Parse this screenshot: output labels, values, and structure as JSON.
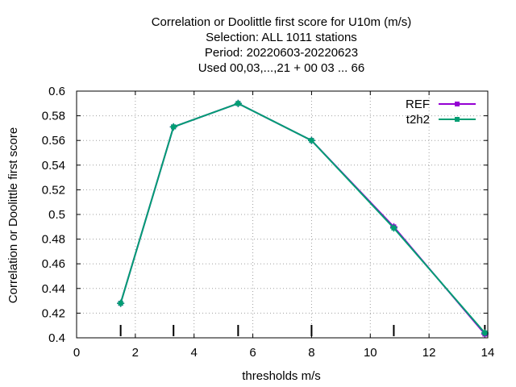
{
  "chart_data": {
    "type": "line",
    "title_lines": [
      "Correlation or Doolittle first score  for U10m (m/s)",
      "Selection: ALL   1011 stations",
      "Period: 20220603-20220623",
      "Used  00,03,...,21  + 00 03 ... 66"
    ],
    "xlabel": "thresholds m/s",
    "ylabel": "Correlation or Doolittle first score",
    "xlim": [
      0,
      14
    ],
    "ylim": [
      0.4,
      0.6
    ],
    "xticks": [
      0,
      2,
      4,
      6,
      8,
      10,
      12,
      14
    ],
    "yticks": [
      0.4,
      0.42,
      0.44,
      0.46,
      0.48,
      0.5,
      0.52,
      0.54,
      0.56,
      0.58,
      0.6
    ],
    "xtick_labels": [
      "0",
      "2",
      "4",
      "6",
      "8",
      "10",
      "12",
      "14"
    ],
    "ytick_labels": [
      "0.4",
      "0.42",
      "0.44",
      "0.46",
      "0.48",
      "0.5",
      "0.52",
      "0.54",
      "0.56",
      "0.58",
      "0.6"
    ],
    "grid": true,
    "legend_position": "top-right",
    "threshold_markers": [
      1.5,
      3.3,
      5.5,
      8.0,
      10.8,
      13.9
    ],
    "series": [
      {
        "name": "REF",
        "color": "#9400d3",
        "x": [
          1.5,
          3.3,
          5.5,
          8.0,
          10.8,
          13.9
        ],
        "y": [
          0.428,
          0.571,
          0.59,
          0.56,
          0.49,
          0.403
        ]
      },
      {
        "name": "t2h2",
        "color": "#009e73",
        "x": [
          1.5,
          3.3,
          5.5,
          8.0,
          10.8,
          13.9
        ],
        "y": [
          0.428,
          0.571,
          0.59,
          0.56,
          0.489,
          0.404
        ]
      }
    ]
  }
}
